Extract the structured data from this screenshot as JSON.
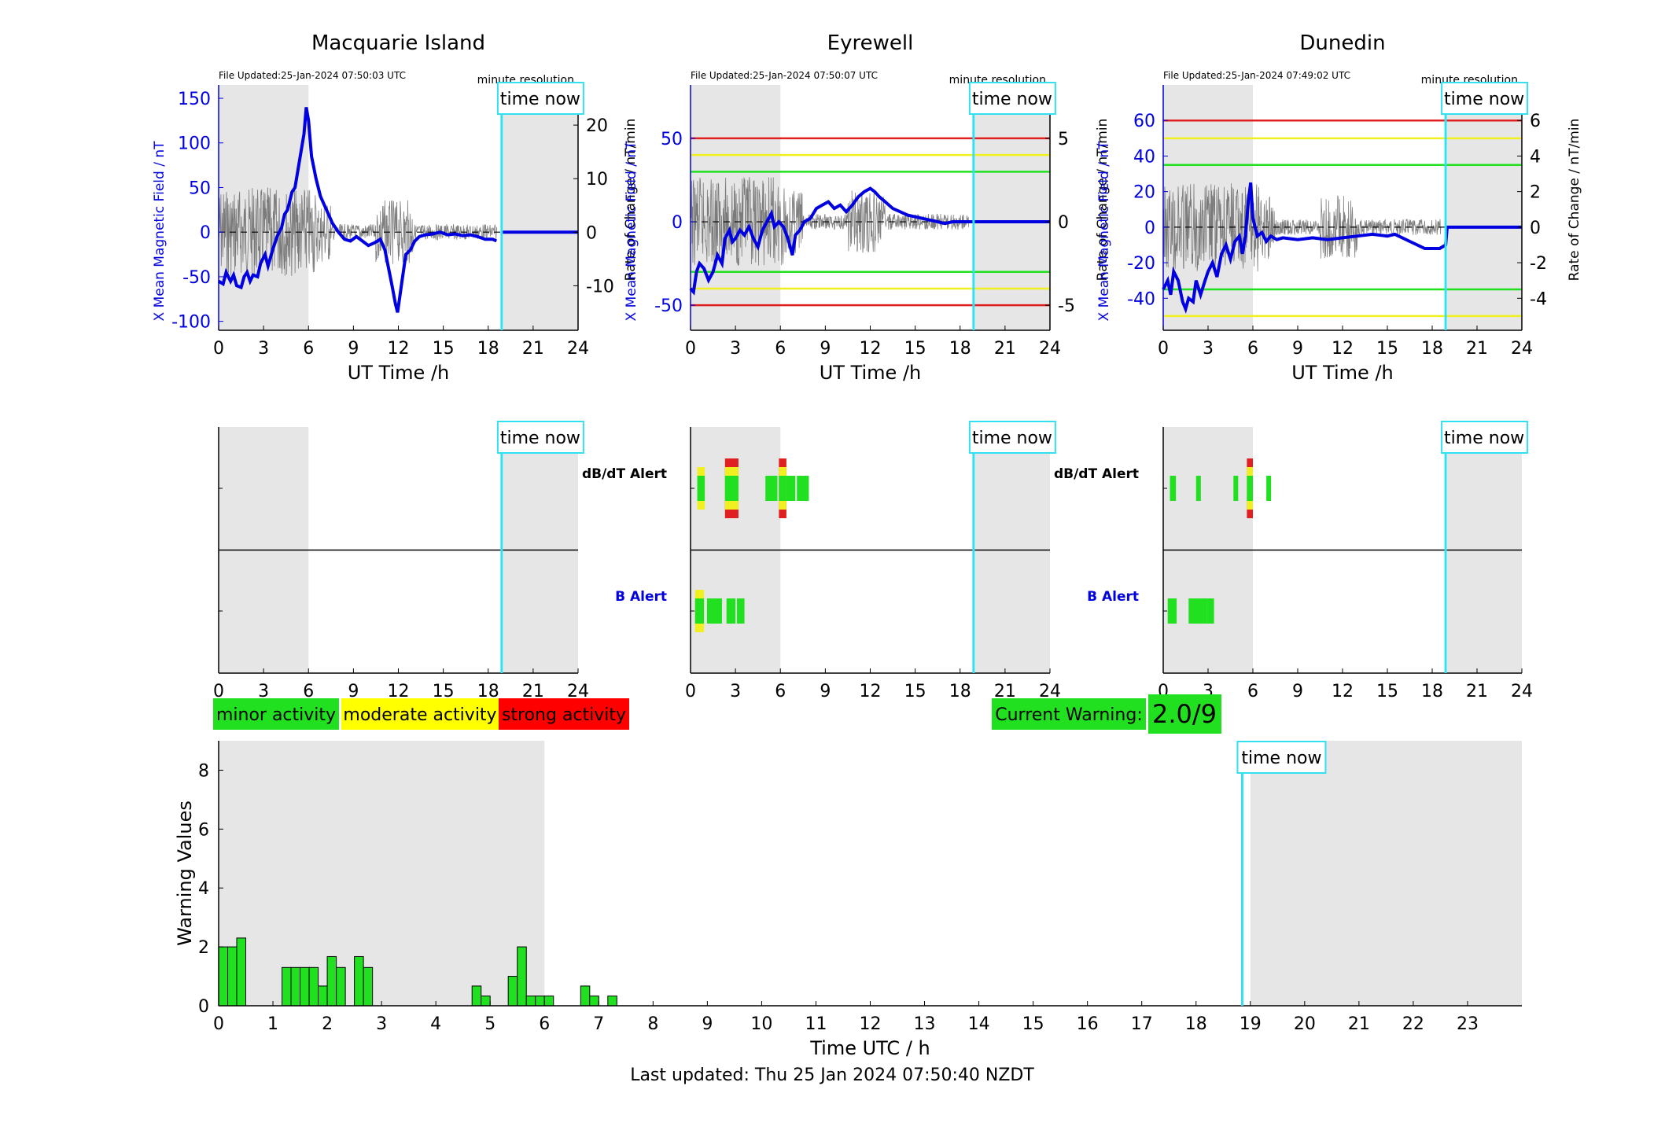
{
  "time_now_label": "time now",
  "axis": {
    "xlabel_top": "UT Time /h",
    "ylabel_left": "X Mean Magnetic Field / nT",
    "ylabel_right": "Rate of Change / nT/min",
    "min_res": "minute resolution"
  },
  "stations": [
    {
      "name": "Macquarie Island",
      "file_updated": "File Updated:25-Jan-2024 07:50:03 UTC",
      "ylim": [
        -110,
        165
      ],
      "yticks": [
        -100,
        -50,
        0,
        50,
        100,
        150
      ],
      "y2lim": [
        -18.3,
        27.5
      ],
      "y2ticks": [
        -10,
        0,
        10,
        20
      ],
      "y2ticklabels": [
        "-10",
        "0",
        "10",
        "20"
      ],
      "thresholds": [],
      "x_mean": [
        [
          0,
          -55
        ],
        [
          0.3,
          -58
        ],
        [
          0.5,
          -45
        ],
        [
          0.8,
          -55
        ],
        [
          1.0,
          -48
        ],
        [
          1.2,
          -60
        ],
        [
          1.5,
          -62
        ],
        [
          1.7,
          -50
        ],
        [
          1.9,
          -45
        ],
        [
          2.1,
          -55
        ],
        [
          2.3,
          -48
        ],
        [
          2.6,
          -50
        ],
        [
          2.8,
          -35
        ],
        [
          3.1,
          -25
        ],
        [
          3.3,
          -38
        ],
        [
          3.6,
          -20
        ],
        [
          3.9,
          -5
        ],
        [
          4.2,
          5
        ],
        [
          4.4,
          20
        ],
        [
          4.6,
          25
        ],
        [
          4.9,
          45
        ],
        [
          5.1,
          50
        ],
        [
          5.3,
          70
        ],
        [
          5.5,
          90
        ],
        [
          5.7,
          110
        ],
        [
          5.85,
          140
        ],
        [
          6.0,
          125
        ],
        [
          6.2,
          85
        ],
        [
          6.5,
          60
        ],
        [
          6.8,
          40
        ],
        [
          7.2,
          25
        ],
        [
          7.6,
          10
        ],
        [
          8.0,
          0
        ],
        [
          8.4,
          -8
        ],
        [
          8.8,
          -10
        ],
        [
          9.2,
          -5
        ],
        [
          9.6,
          -10
        ],
        [
          10.0,
          -15
        ],
        [
          10.4,
          -12
        ],
        [
          10.8,
          -8
        ],
        [
          11.1,
          -20
        ],
        [
          11.4,
          -45
        ],
        [
          11.6,
          -62
        ],
        [
          11.8,
          -80
        ],
        [
          11.95,
          -90
        ],
        [
          12.2,
          -60
        ],
        [
          12.5,
          -25
        ],
        [
          12.8,
          -20
        ],
        [
          13.1,
          -10
        ],
        [
          13.4,
          -5
        ],
        [
          13.8,
          -3
        ],
        [
          14.3,
          -2
        ],
        [
          14.8,
          0
        ],
        [
          15.3,
          -3
        ],
        [
          15.8,
          -2
        ],
        [
          16.3,
          -4
        ],
        [
          16.8,
          -3
        ],
        [
          17.3,
          -5
        ],
        [
          17.8,
          -8
        ],
        [
          18.3,
          -8
        ],
        [
          18.55,
          -10
        ]
      ],
      "x_mean_extension": [
        [
          18.9,
          0
        ],
        [
          24,
          0
        ]
      ],
      "db_alert": [],
      "b_alert": []
    },
    {
      "name": "Eyrewell",
      "file_updated": "File Updated:25-Jan-2024 07:50:07 UTC",
      "ylim": [
        -65,
        82
      ],
      "yticks": [
        -50,
        0,
        50
      ],
      "y2ticks": [
        -5,
        0,
        5
      ],
      "y2ticklabels": [
        "-5",
        "0",
        "5"
      ],
      "thresholds": [
        {
          "y": 50,
          "color": "#e02020"
        },
        {
          "y": 40,
          "color": "#f0f020"
        },
        {
          "y": 30,
          "color": "#20e020"
        },
        {
          "y": -30,
          "color": "#20e020"
        },
        {
          "y": -40,
          "color": "#f0f020"
        },
        {
          "y": -50,
          "color": "#e02020"
        }
      ],
      "x_mean": [
        [
          0,
          -40
        ],
        [
          0.2,
          -42
        ],
        [
          0.4,
          -30
        ],
        [
          0.6,
          -25
        ],
        [
          0.9,
          -28
        ],
        [
          1.2,
          -35
        ],
        [
          1.5,
          -30
        ],
        [
          1.8,
          -20
        ],
        [
          2.1,
          -25
        ],
        [
          2.3,
          -10
        ],
        [
          2.6,
          -5
        ],
        [
          2.8,
          -12
        ],
        [
          3.0,
          -10
        ],
        [
          3.3,
          -5
        ],
        [
          3.6,
          -8
        ],
        [
          3.9,
          -3
        ],
        [
          4.2,
          -10
        ],
        [
          4.5,
          -15
        ],
        [
          4.8,
          -5
        ],
        [
          5.1,
          0
        ],
        [
          5.4,
          5
        ],
        [
          5.6,
          -3
        ],
        [
          5.9,
          0
        ],
        [
          6.2,
          -3
        ],
        [
          6.5,
          -10
        ],
        [
          6.8,
          -20
        ],
        [
          7.0,
          -8
        ],
        [
          7.3,
          -5
        ],
        [
          7.6,
          0
        ],
        [
          8.0,
          2
        ],
        [
          8.4,
          8
        ],
        [
          8.8,
          10
        ],
        [
          9.2,
          12
        ],
        [
          9.6,
          8
        ],
        [
          10.0,
          10
        ],
        [
          10.4,
          6
        ],
        [
          10.8,
          10
        ],
        [
          11.2,
          15
        ],
        [
          11.6,
          18
        ],
        [
          12.0,
          20
        ],
        [
          12.3,
          18
        ],
        [
          12.6,
          15
        ],
        [
          13.0,
          12
        ],
        [
          13.5,
          8
        ],
        [
          14.0,
          6
        ],
        [
          14.5,
          4
        ],
        [
          15.0,
          3
        ],
        [
          15.5,
          2
        ],
        [
          16.0,
          1
        ],
        [
          16.5,
          0
        ],
        [
          17.0,
          -1
        ],
        [
          17.5,
          0
        ],
        [
          18.0,
          0
        ],
        [
          18.5,
          0
        ],
        [
          18.9,
          0
        ],
        [
          24,
          0
        ]
      ],
      "x_mean_extension": [],
      "db_alert": [
        {
          "x": 0.45,
          "w": 0.5,
          "colors": [
            "#20e020",
            "#f0f020"
          ]
        },
        {
          "x": 2.3,
          "w": 0.9,
          "colors": [
            "#20e020",
            "#f0f020",
            "#e02020"
          ]
        },
        {
          "x": 5.0,
          "w": 0.8,
          "colors": [
            "#20e020"
          ]
        },
        {
          "x": 5.9,
          "w": 0.5,
          "colors": [
            "#20e020",
            "#f0f020",
            "#e02020"
          ]
        },
        {
          "x": 6.4,
          "w": 0.6,
          "colors": [
            "#20e020"
          ]
        },
        {
          "x": 7.1,
          "w": 0.8,
          "colors": [
            "#20e020"
          ]
        }
      ],
      "b_alert": [
        {
          "x": 0.3,
          "w": 0.6,
          "colors": [
            "#20e020",
            "#f0f020"
          ]
        },
        {
          "x": 1.1,
          "w": 1.0,
          "colors": [
            "#20e020"
          ]
        },
        {
          "x": 2.4,
          "w": 0.6,
          "colors": [
            "#20e020"
          ]
        },
        {
          "x": 3.1,
          "w": 0.5,
          "colors": [
            "#20e020"
          ]
        }
      ]
    },
    {
      "name": "Dunedin",
      "file_updated": "File Updated:25-Jan-2024 07:49:02 UTC",
      "ylim": [
        -58,
        80
      ],
      "yticks": [
        -40,
        -20,
        0,
        20,
        40,
        60
      ],
      "y2ticks": [
        -4,
        -2,
        0,
        2,
        4,
        6
      ],
      "y2ticklabels": [
        "-4",
        "-2",
        "0",
        "2",
        "4",
        "6"
      ],
      "thresholds": [
        {
          "y": 60,
          "color": "#e02020"
        },
        {
          "y": 50,
          "color": "#f0f020"
        },
        {
          "y": 35,
          "color": "#20e020"
        },
        {
          "y": -35,
          "color": "#20e020"
        },
        {
          "y": -50,
          "color": "#f0f020"
        }
      ],
      "x_mean": [
        [
          0,
          -35
        ],
        [
          0.3,
          -30
        ],
        [
          0.5,
          -38
        ],
        [
          0.7,
          -25
        ],
        [
          1.0,
          -30
        ],
        [
          1.3,
          -42
        ],
        [
          1.5,
          -46
        ],
        [
          1.7,
          -40
        ],
        [
          2.0,
          -42
        ],
        [
          2.2,
          -30
        ],
        [
          2.5,
          -38
        ],
        [
          2.8,
          -30
        ],
        [
          3.0,
          -25
        ],
        [
          3.3,
          -20
        ],
        [
          3.6,
          -28
        ],
        [
          3.9,
          -15
        ],
        [
          4.2,
          -10
        ],
        [
          4.5,
          -18
        ],
        [
          4.8,
          -8
        ],
        [
          5.1,
          -5
        ],
        [
          5.3,
          -15
        ],
        [
          5.5,
          -5
        ],
        [
          5.7,
          15
        ],
        [
          5.85,
          25
        ],
        [
          6.0,
          5
        ],
        [
          6.3,
          -5
        ],
        [
          6.6,
          -3
        ],
        [
          6.9,
          -8
        ],
        [
          7.2,
          -5
        ],
        [
          7.6,
          -7
        ],
        [
          8.0,
          -6
        ],
        [
          9.0,
          -7
        ],
        [
          10.0,
          -6
        ],
        [
          11.0,
          -7
        ],
        [
          12.0,
          -6
        ],
        [
          13.0,
          -5
        ],
        [
          14.0,
          -4
        ],
        [
          15.0,
          -5
        ],
        [
          15.5,
          -4
        ],
        [
          16.0,
          -6
        ],
        [
          16.5,
          -8
        ],
        [
          17.0,
          -10
        ],
        [
          17.5,
          -12
        ],
        [
          18.0,
          -12
        ],
        [
          18.5,
          -12
        ],
        [
          18.9,
          -10
        ],
        [
          19.0,
          0
        ],
        [
          24,
          0
        ]
      ],
      "x_mean_extension": [],
      "db_alert": [
        {
          "x": 0.45,
          "w": 0.4,
          "colors": [
            "#20e020"
          ]
        },
        {
          "x": 2.2,
          "w": 0.3,
          "colors": [
            "#20e020"
          ]
        },
        {
          "x": 4.7,
          "w": 0.3,
          "colors": [
            "#20e020"
          ]
        },
        {
          "x": 5.6,
          "w": 0.4,
          "colors": [
            "#20e020",
            "#f0f020",
            "#e02020"
          ]
        },
        {
          "x": 6.9,
          "w": 0.3,
          "colors": [
            "#20e020"
          ]
        }
      ],
      "b_alert": [
        {
          "x": 0.3,
          "w": 0.6,
          "colors": [
            "#20e020"
          ]
        },
        {
          "x": 1.7,
          "w": 1.2,
          "colors": [
            "#20e020"
          ]
        },
        {
          "x": 2.9,
          "w": 0.5,
          "colors": [
            "#20e020"
          ]
        }
      ]
    }
  ],
  "alerts": {
    "db_label": "dB/dT Alert",
    "b_label": "B Alert"
  },
  "legend": {
    "minor": "minor activity",
    "moderate": "moderate activity",
    "strong": "strong activity",
    "minor_color": "#20e020",
    "moderate_color": "#ffff00",
    "strong_color": "#ff0000"
  },
  "current_warning": {
    "label": "Current Warning:",
    "value": "2.0/9"
  },
  "chart_data": {
    "type": "bar",
    "title": "",
    "xlabel": "Time UTC / h",
    "ylabel": "Warning Values",
    "xlim": [
      0,
      24
    ],
    "ylim": [
      0,
      9
    ],
    "xticks": [
      0,
      1,
      2,
      3,
      4,
      5,
      6,
      7,
      8,
      9,
      10,
      11,
      12,
      13,
      14,
      15,
      16,
      17,
      18,
      19,
      20,
      21,
      22,
      23
    ],
    "yticks": [
      0,
      2,
      4,
      6,
      8
    ],
    "time_now": 18.85,
    "bar_width": 0.1667,
    "bars": [
      [
        0.0,
        2.0
      ],
      [
        0.167,
        2.0
      ],
      [
        0.333,
        2.3
      ],
      [
        1.167,
        1.3
      ],
      [
        1.333,
        1.3
      ],
      [
        1.5,
        1.3
      ],
      [
        1.667,
        1.3
      ],
      [
        1.833,
        0.67
      ],
      [
        2.0,
        1.67
      ],
      [
        2.167,
        1.3
      ],
      [
        2.5,
        1.67
      ],
      [
        2.667,
        1.3
      ],
      [
        4.667,
        0.67
      ],
      [
        4.833,
        0.33
      ],
      [
        5.333,
        1.0
      ],
      [
        5.5,
        2.0
      ],
      [
        5.667,
        0.33
      ],
      [
        5.833,
        0.33
      ],
      [
        6.0,
        0.33
      ],
      [
        6.667,
        0.67
      ],
      [
        6.833,
        0.33
      ],
      [
        7.167,
        0.33
      ]
    ]
  },
  "footer": {
    "last_updated": "Last updated: Thu 25 Jan 2024 07:50:40 NZDT"
  }
}
